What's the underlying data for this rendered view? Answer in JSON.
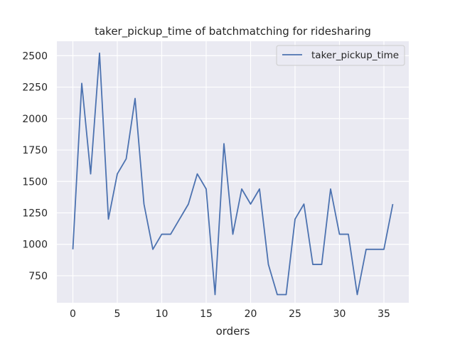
{
  "chart_data": {
    "type": "line",
    "title": "taker_pickup_time of batchmatching for ridesharing",
    "xlabel": "orders",
    "ylabel": "",
    "xlim": [
      -1.8,
      37.8
    ],
    "ylim": [
      535,
      2615
    ],
    "x_ticks": [
      0,
      5,
      10,
      15,
      20,
      25,
      30,
      35
    ],
    "y_ticks": [
      750,
      1000,
      1250,
      1500,
      1750,
      2000,
      2250,
      2500
    ],
    "grid": true,
    "legend_position": "top-right",
    "series": [
      {
        "name": "taker_pickup_time",
        "color": "#4c72b0",
        "x": [
          0,
          1,
          2,
          3,
          4,
          5,
          6,
          7,
          8,
          9,
          10,
          11,
          12,
          13,
          14,
          15,
          16,
          17,
          18,
          19,
          20,
          21,
          22,
          23,
          24,
          25,
          26,
          27,
          28,
          29,
          30,
          31,
          32,
          33,
          34,
          35,
          36
        ],
        "values": [
          960,
          2280,
          1560,
          2520,
          1200,
          1560,
          1680,
          2160,
          1320,
          960,
          1080,
          1080,
          1200,
          1320,
          1560,
          1440,
          600,
          1800,
          1080,
          1440,
          1320,
          1440,
          840,
          600,
          600,
          1200,
          1320,
          840,
          840,
          1440,
          1080,
          1080,
          600,
          960,
          960,
          960,
          1320
        ]
      }
    ]
  },
  "colors": {
    "plot_background": "#eaeaf2",
    "grid": "#ffffff",
    "line": "#4c72b0"
  }
}
